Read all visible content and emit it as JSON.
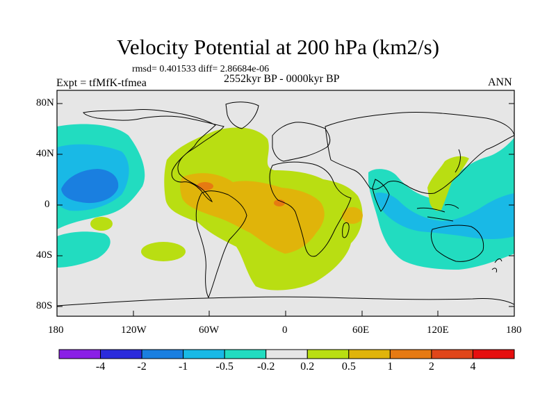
{
  "title": "Velocity Potential at 200 hPa (km2/s)",
  "stats": "rmsd= 0.401533 diff= 2.86684e-06",
  "left_label": "Expt = tfMfK-tfmea",
  "center_label": "2552kyr BP - 0000kyr BP",
  "right_label": "ANN",
  "lat_ticks": [
    "80N",
    "40N",
    "0",
    "40S",
    "80S"
  ],
  "lon_ticks": [
    "180",
    "120W",
    "60W",
    "0",
    "60E",
    "120E",
    "180"
  ],
  "colorbar": {
    "labels": [
      "-4",
      "-2",
      "-1",
      "-0.5",
      "-0.2",
      "0.2",
      "0.5",
      "1",
      "2",
      "4"
    ],
    "colors": [
      "#8a1fe6",
      "#2b2bdc",
      "#1a7fe0",
      "#19b9e6",
      "#22dcc0",
      "#e6e6e6",
      "#b9de12",
      "#e0b40a",
      "#e67a12",
      "#e0461a",
      "#e60f0f"
    ]
  },
  "palette": {
    "ocean_neutral": "#e6e6e6",
    "blue_mid": "#1a7fe0",
    "cyan_light": "#19b9e6",
    "teal": "#22dcc0",
    "yellow_green": "#b9de12",
    "orange_light": "#e0b40a",
    "orange_dark": "#e67a12"
  }
}
